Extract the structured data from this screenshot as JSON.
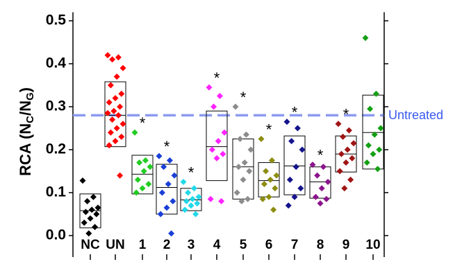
{
  "chart_data": {
    "type": "box_scatter",
    "ylabel_parts": [
      "RCA (N",
      "C",
      "/N",
      "G",
      ")"
    ],
    "ylim": [
      -0.05,
      0.52
    ],
    "yticks": [
      {
        "value": 0,
        "label": "0.0"
      },
      0.1,
      0.2,
      0.3,
      0.4,
      0.5
    ],
    "reference_line": {
      "value": 0.28,
      "label": "Untreated",
      "color": "#8a9bf0"
    },
    "groups": [
      {
        "name": "NC",
        "color": "#000000",
        "box": [
          0.018,
          0.058,
          0.097
        ],
        "points": [
          0.128,
          0.09,
          0.08,
          0.065,
          0.06,
          0.055,
          0.05,
          0.04,
          0.03,
          0.02,
          0.005
        ]
      },
      {
        "name": "UN",
        "color": "#ff0000",
        "box": [
          0.207,
          0.28,
          0.358
        ],
        "points": [
          0.42,
          0.415,
          0.41,
          0.39,
          0.37,
          0.35,
          0.33,
          0.32,
          0.31,
          0.3,
          0.29,
          0.285,
          0.28,
          0.27,
          0.26,
          0.25,
          0.24,
          0.23,
          0.22,
          0.21,
          0.14
        ]
      },
      {
        "name": "1",
        "color": "#22cc22",
        "box": [
          0.097,
          0.143,
          0.187
        ],
        "points": [
          0.24,
          0.175,
          0.17,
          0.16,
          0.15,
          0.13,
          0.12,
          0.11,
          0.1
        ],
        "marker": "*"
      },
      {
        "name": "2",
        "color": "#1a3fd6",
        "box": [
          0.05,
          0.112,
          0.166
        ],
        "points": [
          0.185,
          0.175,
          0.16,
          0.14,
          0.12,
          0.1,
          0.08,
          0.065,
          0.05,
          0.005
        ],
        "marker": "*"
      },
      {
        "name": "3",
        "color": "#22d8e8",
        "box": [
          0.058,
          0.083,
          0.11
        ],
        "points": [
          0.125,
          0.11,
          0.1,
          0.09,
          0.085,
          0.08,
          0.075,
          0.07,
          0.06,
          0.05
        ],
        "marker": "*"
      },
      {
        "name": "4",
        "color": "#ff22ff",
        "box": [
          0.128,
          0.207,
          0.29
        ],
        "points": [
          0.345,
          0.325,
          0.3,
          0.24,
          0.22,
          0.2,
          0.19,
          0.18,
          0.085,
          0.08
        ],
        "marker": "*"
      },
      {
        "name": "5",
        "color": "#8c8c8c",
        "box": [
          0.085,
          0.16,
          0.225
        ],
        "points": [
          0.3,
          0.235,
          0.225,
          0.2,
          0.17,
          0.16,
          0.15,
          0.13,
          0.1,
          0.085,
          0.08
        ],
        "marker": "*"
      },
      {
        "name": "6",
        "color": "#8c8c10",
        "box": [
          0.09,
          0.128,
          0.17
        ],
        "points": [
          0.225,
          0.175,
          0.15,
          0.14,
          0.13,
          0.12,
          0.11,
          0.09,
          0.085,
          0.06
        ],
        "marker": "*"
      },
      {
        "name": "7",
        "color": "#14148c",
        "box": [
          0.095,
          0.162,
          0.232
        ],
        "points": [
          0.265,
          0.25,
          0.22,
          0.2,
          0.16,
          0.13,
          0.11,
          0.09,
          0.07
        ],
        "marker": "*"
      },
      {
        "name": "8",
        "color": "#8c148c",
        "box": [
          0.087,
          0.125,
          0.16
        ],
        "points": [
          0.165,
          0.16,
          0.14,
          0.125,
          0.11,
          0.09,
          0.085,
          0.075
        ],
        "marker": "*"
      },
      {
        "name": "9",
        "color": "#a01414",
        "box": [
          0.148,
          0.19,
          0.232
        ],
        "points": [
          0.26,
          0.245,
          0.23,
          0.215,
          0.2,
          0.19,
          0.18,
          0.17,
          0.15,
          0.13,
          0.11
        ],
        "marker": "*"
      },
      {
        "name": "10",
        "color": "#14a014",
        "box": [
          0.155,
          0.24,
          0.327
        ],
        "points": [
          0.46,
          0.33,
          0.295,
          0.25,
          0.235,
          0.21,
          0.2,
          0.19,
          0.17,
          0.155
        ]
      }
    ]
  }
}
